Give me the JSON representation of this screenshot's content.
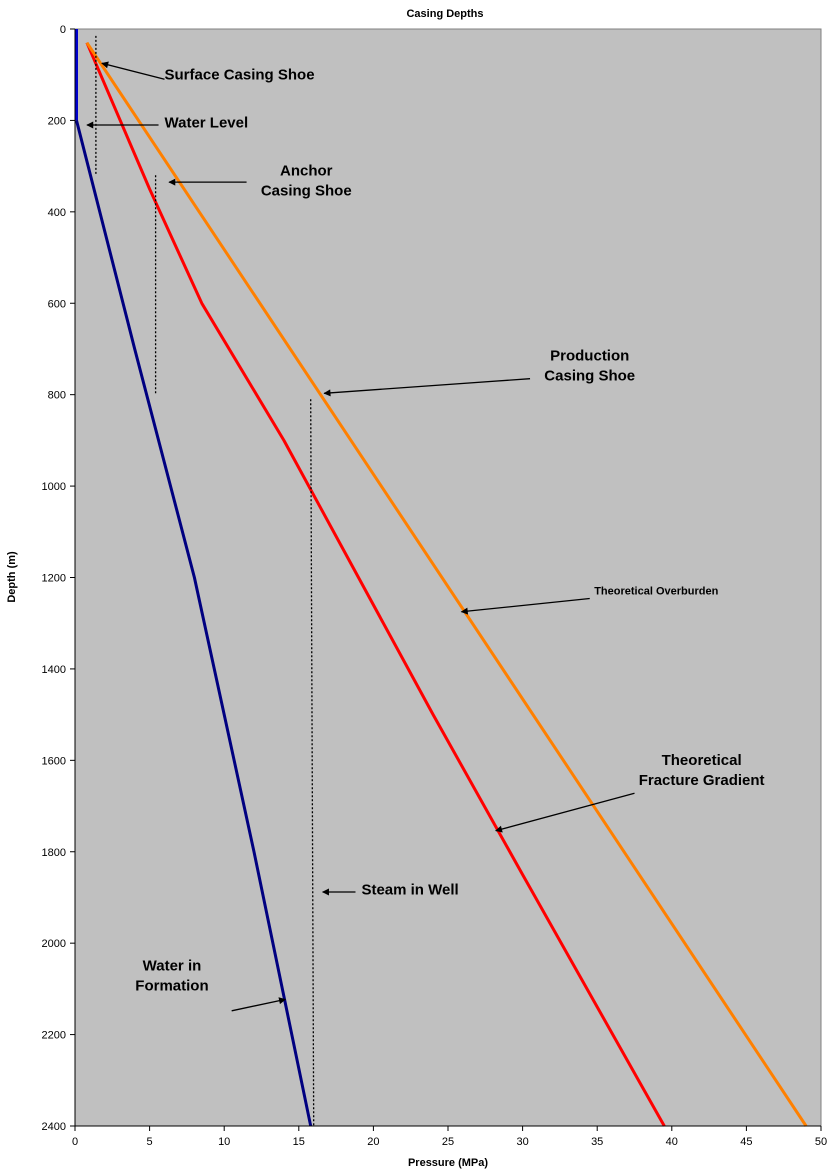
{
  "chart_data": {
    "type": "line",
    "title": "Casing Depths",
    "xlabel": "Pressure (MPa)",
    "ylabel": "Depth (m)",
    "xlim": [
      0,
      50
    ],
    "ylim": [
      0,
      2400
    ],
    "y_inverted": true,
    "grid": false,
    "background_color": "#c0c0c0",
    "x_ticks": [
      "0",
      "5",
      "10",
      "15",
      "20",
      "25",
      "30",
      "35",
      "40",
      "45",
      "50"
    ],
    "y_ticks": [
      "0",
      "200",
      "400",
      "600",
      "800",
      "1000",
      "1200",
      "1400",
      "1600",
      "1800",
      "2000",
      "2200",
      "2400"
    ],
    "series": [
      {
        "color": "#0000cc",
        "points": [
          [
            0.1,
            0
          ],
          [
            0.1,
            200
          ]
        ]
      },
      {
        "color": "#000080",
        "points": [
          [
            0.1,
            200
          ],
          [
            4.0,
            700
          ],
          [
            8.0,
            1200
          ],
          [
            12.0,
            1800
          ],
          [
            15.8,
            2400
          ]
        ]
      },
      {
        "color": "#ff0000",
        "points": [
          [
            0.8,
            30
          ],
          [
            5.0,
            350
          ],
          [
            8.5,
            600
          ],
          [
            14.0,
            900
          ],
          [
            19.0,
            1200
          ],
          [
            24.0,
            1500
          ],
          [
            30.0,
            1850
          ],
          [
            39.5,
            2400
          ]
        ]
      },
      {
        "color": "#ff8000",
        "points": [
          [
            0.8,
            30
          ],
          [
            49.0,
            2400
          ]
        ]
      },
      {
        "color": "#000000",
        "dashed": true,
        "points": [
          [
            1.4,
            15
          ],
          [
            1.4,
            320
          ]
        ]
      },
      {
        "color": "#000000",
        "dashed": true,
        "points": [
          [
            5.4,
            320
          ],
          [
            5.4,
            800
          ]
        ]
      },
      {
        "color": "#000000",
        "dashed": true,
        "points": [
          [
            15.8,
            810
          ],
          [
            16.0,
            2400
          ]
        ]
      }
    ],
    "annotations": [
      {
        "lines": [
          "Surface Casing Shoe"
        ],
        "text_at": [
          6.0,
          110
        ],
        "anchor": "start",
        "arrow_from": [
          6.0,
          110
        ],
        "arrow_to": [
          1.8,
          75
        ]
      },
      {
        "lines": [
          "Water Level"
        ],
        "text_at": [
          6.0,
          215
        ],
        "anchor": "start",
        "arrow_from": [
          5.6,
          210
        ],
        "arrow_to": [
          0.8,
          210
        ]
      },
      {
        "lines": [
          "Anchor",
          "Casing Shoe"
        ],
        "text_at": [
          15.5,
          320
        ],
        "anchor": "middle",
        "arrow_from": [
          11.5,
          335
        ],
        "arrow_to": [
          6.3,
          335
        ]
      },
      {
        "lines": [
          "Production",
          "Casing Shoe"
        ],
        "text_at": [
          34.5,
          725
        ],
        "anchor": "middle",
        "arrow_from": [
          30.5,
          765
        ],
        "arrow_to": [
          16.7,
          797
        ]
      },
      {
        "lines": [
          "Theoretical Overburden"
        ],
        "small": true,
        "text_at": [
          34.8,
          1237
        ],
        "anchor": "start",
        "arrow_from": [
          34.5,
          1246
        ],
        "arrow_to": [
          25.9,
          1275
        ]
      },
      {
        "lines": [
          "Theoretical",
          "Fracture Gradient"
        ],
        "text_at": [
          42.0,
          1610
        ],
        "anchor": "middle",
        "arrow_from": [
          37.5,
          1672
        ],
        "arrow_to": [
          28.2,
          1754
        ]
      },
      {
        "lines": [
          "Steam in Well"
        ],
        "text_at": [
          19.2,
          1893
        ],
        "anchor": "start",
        "arrow_from": [
          18.8,
          1888
        ],
        "arrow_to": [
          16.6,
          1888
        ]
      },
      {
        "lines": [
          "Water in",
          "Formation"
        ],
        "text_at": [
          6.5,
          2060
        ],
        "anchor": "middle",
        "arrow_from": [
          10.5,
          2148
        ],
        "arrow_to": [
          14.1,
          2123
        ]
      }
    ]
  }
}
